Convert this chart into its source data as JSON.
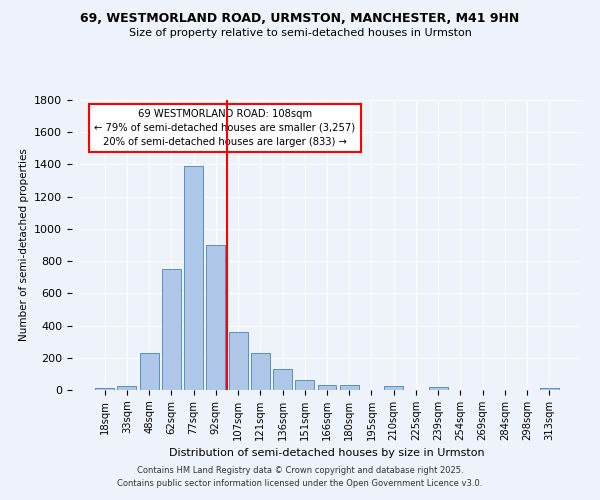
{
  "title1": "69, WESTMORLAND ROAD, URMSTON, MANCHESTER, M41 9HN",
  "title2": "Size of property relative to semi-detached houses in Urmston",
  "xlabel": "Distribution of semi-detached houses by size in Urmston",
  "ylabel": "Number of semi-detached properties",
  "footer1": "Contains HM Land Registry data © Crown copyright and database right 2025.",
  "footer2": "Contains public sector information licensed under the Open Government Licence v3.0.",
  "bar_labels": [
    "18sqm",
    "33sqm",
    "48sqm",
    "62sqm",
    "77sqm",
    "92sqm",
    "107sqm",
    "121sqm",
    "136sqm",
    "151sqm",
    "166sqm",
    "180sqm",
    "195sqm",
    "210sqm",
    "225sqm",
    "239sqm",
    "254sqm",
    "269sqm",
    "284sqm",
    "298sqm",
    "313sqm"
  ],
  "bar_values": [
    15,
    25,
    230,
    750,
    1390,
    900,
    360,
    230,
    130,
    60,
    30,
    30,
    0,
    25,
    0,
    20,
    0,
    0,
    0,
    0,
    10
  ],
  "bar_color": "#aec6e8",
  "bar_edge_color": "#5a8fc2",
  "vline_x": 5.5,
  "annotation_text1": "69 WESTMORLAND ROAD: 108sqm",
  "annotation_text2": "← 79% of semi-detached houses are smaller (3,257)",
  "annotation_text3": "20% of semi-detached houses are larger (833) →",
  "ylim": [
    0,
    1800
  ],
  "yticks": [
    0,
    200,
    400,
    600,
    800,
    1000,
    1200,
    1400,
    1600,
    1800
  ],
  "background_color": "#eef2fb",
  "grid_color": "white"
}
